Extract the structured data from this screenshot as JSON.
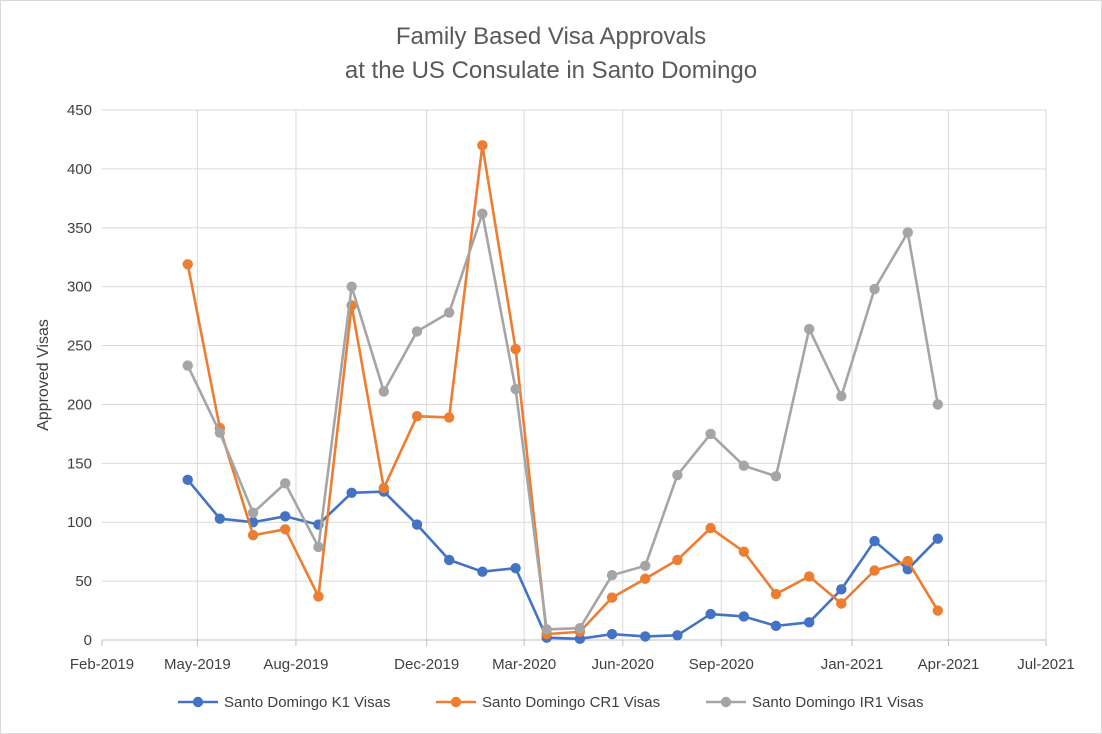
{
  "chart_data": {
    "type": "line",
    "title": [
      "Family Based Visa Approvals",
      "at the US Consulate in Santo Domingo"
    ],
    "xlabel": "",
    "ylabel": "Approved Visas",
    "ylim": [
      0,
      450
    ],
    "y_ticks": [
      "0",
      "50",
      "100",
      "150",
      "200",
      "250",
      "300",
      "350",
      "400",
      "450"
    ],
    "x_ticks": [
      "Feb-2019",
      "May-2019",
      "Aug-2019",
      "Dec-2019",
      "Mar-2020",
      "Jun-2020",
      "Sep-2020",
      "Jan-2021",
      "Apr-2021",
      "Jul-2021"
    ],
    "x_tick_dates": [
      "2019-02-01",
      "2019-05-01",
      "2019-08-01",
      "2019-12-01",
      "2020-03-01",
      "2020-06-01",
      "2020-09-01",
      "2021-01-01",
      "2021-04-01",
      "2021-07-01"
    ],
    "xlim": [
      "2019-02-01",
      "2021-07-01"
    ],
    "x": [
      "2019-04-22",
      "2019-05-22",
      "2019-06-22",
      "2019-07-22",
      "2019-08-22",
      "2019-09-22",
      "2019-10-22",
      "2019-11-22",
      "2019-12-22",
      "2020-01-22",
      "2020-02-22",
      "2020-03-22",
      "2020-04-22",
      "2020-05-22",
      "2020-06-22",
      "2020-07-22",
      "2020-08-22",
      "2020-09-22",
      "2020-10-22",
      "2020-11-22",
      "2020-12-22",
      "2021-01-22",
      "2021-02-22",
      "2021-03-22"
    ],
    "series": [
      {
        "name": "Santo Domingo K1 Visas",
        "color": "#4472c4",
        "values": [
          136,
          103,
          100,
          105,
          98,
          125,
          126,
          98,
          68,
          58,
          61,
          2,
          1,
          5,
          3,
          4,
          22,
          20,
          12,
          15,
          43,
          84,
          60,
          86
        ]
      },
      {
        "name": "Santo Domingo CR1 Visas",
        "color": "#ed7d31",
        "values": [
          319,
          180,
          89,
          94,
          37,
          284,
          129,
          190,
          189,
          420,
          247,
          5,
          7,
          36,
          52,
          68,
          95,
          75,
          39,
          54,
          31,
          59,
          67,
          25
        ]
      },
      {
        "name": "Santo Domingo IR1 Visas",
        "color": "#a5a5a5",
        "values": [
          233,
          176,
          108,
          133,
          79,
          300,
          211,
          262,
          278,
          362,
          213,
          9,
          10,
          55,
          63,
          140,
          175,
          148,
          139,
          264,
          207,
          298,
          346,
          200
        ]
      }
    ],
    "grid": true,
    "legend": "bottom"
  }
}
